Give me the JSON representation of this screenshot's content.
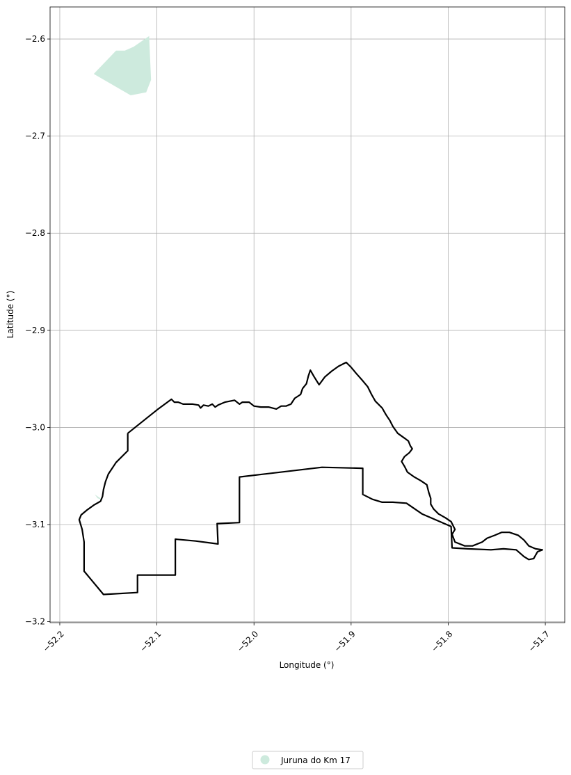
{
  "chart_data": {
    "type": "map",
    "xlabel": "Longitude (°)",
    "ylabel": "Latitude (°)",
    "xlim": [
      -52.21,
      -51.68
    ],
    "ylim": [
      -3.201,
      -2.567
    ],
    "grid": true,
    "x_ticks": [
      -52.2,
      -52.1,
      -52.0,
      -51.9,
      -51.8,
      -51.7
    ],
    "x_tick_labels": [
      "−52.2",
      "−52.1",
      "−52.0",
      "−51.9",
      "−51.8",
      "−51.7"
    ],
    "y_ticks": [
      -2.6,
      -2.7,
      -2.8,
      -2.9,
      -3.0,
      -3.1,
      -3.2
    ],
    "y_tick_labels": [
      "−2.6",
      "−2.7",
      "−2.8",
      "−2.9",
      "−3.0",
      "−3.1",
      "−3.2"
    ],
    "legend": {
      "placement": "bottom-center",
      "entries": [
        {
          "label": "Juruna do Km 17",
          "color": "#cdeadd"
        }
      ]
    },
    "polygons": [
      {
        "name": "Juruna do Km 17",
        "color": "#cdeadd",
        "points": [
          [
            -52.165,
            -2.636
          ],
          [
            -52.142,
            -2.612
          ],
          [
            -52.133,
            -2.612
          ],
          [
            -52.124,
            -2.608
          ],
          [
            -52.108,
            -2.597
          ],
          [
            -52.106,
            -2.642
          ],
          [
            -52.111,
            -2.655
          ],
          [
            -52.127,
            -2.658
          ],
          [
            -52.165,
            -2.636
          ]
        ]
      },
      {
        "name": "Juruna do Km 17",
        "color": "#cdeadd",
        "points": [
          [
            -52.164,
            -3.069
          ],
          [
            -52.155,
            -3.075
          ],
          [
            -52.161,
            -3.073
          ],
          [
            -52.164,
            -3.069
          ]
        ]
      }
    ],
    "boundary": {
      "color": "#000000",
      "points": [
        [
          -52.13,
          -3.006
        ],
        [
          -52.1,
          -2.982
        ],
        [
          -52.085,
          -2.971
        ],
        [
          -52.082,
          -2.974
        ],
        [
          -52.078,
          -2.974
        ],
        [
          -52.073,
          -2.976
        ],
        [
          -52.063,
          -2.976
        ],
        [
          -52.057,
          -2.977
        ],
        [
          -52.055,
          -2.98
        ],
        [
          -52.052,
          -2.977
        ],
        [
          -52.047,
          -2.978
        ],
        [
          -52.043,
          -2.976
        ],
        [
          -52.04,
          -2.979
        ],
        [
          -52.037,
          -2.977
        ],
        [
          -52.03,
          -2.974
        ],
        [
          -52.02,
          -2.972
        ],
        [
          -52.015,
          -2.976
        ],
        [
          -52.012,
          -2.974
        ],
        [
          -52.005,
          -2.974
        ],
        [
          -52.0,
          -2.978
        ],
        [
          -51.993,
          -2.979
        ],
        [
          -51.985,
          -2.979
        ],
        [
          -51.977,
          -2.981
        ],
        [
          -51.972,
          -2.978
        ],
        [
          -51.967,
          -2.978
        ],
        [
          -51.962,
          -2.976
        ],
        [
          -51.958,
          -2.97
        ],
        [
          -51.952,
          -2.966
        ],
        [
          -51.95,
          -2.96
        ],
        [
          -51.946,
          -2.955
        ],
        [
          -51.944,
          -2.947
        ],
        [
          -51.942,
          -2.941
        ],
        [
          -51.938,
          -2.948
        ],
        [
          -51.933,
          -2.956
        ],
        [
          -51.927,
          -2.948
        ],
        [
          -51.92,
          -2.942
        ],
        [
          -51.913,
          -2.937
        ],
        [
          -51.905,
          -2.933
        ],
        [
          -51.9,
          -2.938
        ],
        [
          -51.895,
          -2.944
        ],
        [
          -51.888,
          -2.952
        ],
        [
          -51.883,
          -2.958
        ],
        [
          -51.879,
          -2.966
        ],
        [
          -51.875,
          -2.973
        ],
        [
          -51.868,
          -2.98
        ],
        [
          -51.864,
          -2.987
        ],
        [
          -51.86,
          -2.993
        ],
        [
          -51.857,
          -2.999
        ],
        [
          -51.852,
          -3.006
        ],
        [
          -51.845,
          -3.011
        ],
        [
          -51.841,
          -3.014
        ],
        [
          -51.839,
          -3.019
        ],
        [
          -51.837,
          -3.022
        ],
        [
          -51.84,
          -3.026
        ],
        [
          -51.845,
          -3.03
        ],
        [
          -51.848,
          -3.035
        ],
        [
          -51.845,
          -3.04
        ],
        [
          -51.842,
          -3.046
        ],
        [
          -51.835,
          -3.051
        ],
        [
          -51.828,
          -3.055
        ],
        [
          -51.822,
          -3.059
        ],
        [
          -51.82,
          -3.067
        ],
        [
          -51.818,
          -3.073
        ],
        [
          -51.818,
          -3.079
        ],
        [
          -51.815,
          -3.084
        ],
        [
          -51.81,
          -3.089
        ],
        [
          -51.803,
          -3.093
        ],
        [
          -51.797,
          -3.097
        ],
        [
          -51.793,
          -3.105
        ],
        [
          -51.796,
          -3.11
        ],
        [
          -51.793,
          -3.118
        ],
        [
          -51.783,
          -3.122
        ],
        [
          -51.775,
          -3.122
        ],
        [
          -51.765,
          -3.118
        ],
        [
          -51.76,
          -3.114
        ],
        [
          -51.752,
          -3.111
        ],
        [
          -51.745,
          -3.108
        ],
        [
          -51.737,
          -3.108
        ],
        [
          -51.728,
          -3.111
        ],
        [
          -51.722,
          -3.116
        ],
        [
          -51.717,
          -3.122
        ],
        [
          -51.71,
          -3.125
        ],
        [
          -51.703,
          -3.126
        ],
        [
          -51.708,
          -3.128
        ],
        [
          -51.712,
          -3.135
        ],
        [
          -51.717,
          -3.136
        ],
        [
          -51.722,
          -3.133
        ],
        [
          -51.73,
          -3.126
        ],
        [
          -51.743,
          -3.125
        ],
        [
          -51.756,
          -3.126
        ],
        [
          -51.78,
          -3.125
        ],
        [
          -51.796,
          -3.124
        ],
        [
          -51.797,
          -3.102
        ],
        [
          -51.827,
          -3.089
        ],
        [
          -51.843,
          -3.078
        ],
        [
          -51.857,
          -3.077
        ],
        [
          -51.868,
          -3.077
        ],
        [
          -51.878,
          -3.074
        ],
        [
          -51.888,
          -3.069
        ],
        [
          -51.888,
          -3.042
        ],
        [
          -51.93,
          -3.041
        ],
        [
          -52.015,
          -3.051
        ],
        [
          -52.015,
          -3.098
        ],
        [
          -52.038,
          -3.099
        ],
        [
          -52.037,
          -3.12
        ],
        [
          -52.06,
          -3.117
        ],
        [
          -52.081,
          -3.115
        ],
        [
          -52.081,
          -3.152
        ],
        [
          -52.1,
          -3.152
        ],
        [
          -52.12,
          -3.152
        ],
        [
          -52.12,
          -3.17
        ],
        [
          -52.155,
          -3.172
        ],
        [
          -52.175,
          -3.148
        ],
        [
          -52.175,
          -3.135
        ],
        [
          -52.175,
          -3.118
        ],
        [
          -52.177,
          -3.105
        ],
        [
          -52.18,
          -3.095
        ],
        [
          -52.178,
          -3.09
        ],
        [
          -52.172,
          -3.085
        ],
        [
          -52.165,
          -3.08
        ],
        [
          -52.158,
          -3.076
        ],
        [
          -52.156,
          -3.071
        ],
        [
          -52.155,
          -3.064
        ],
        [
          -52.153,
          -3.056
        ],
        [
          -52.15,
          -3.048
        ],
        [
          -52.142,
          -3.036
        ],
        [
          -52.13,
          -3.024
        ],
        [
          -52.13,
          -3.006
        ]
      ]
    }
  }
}
